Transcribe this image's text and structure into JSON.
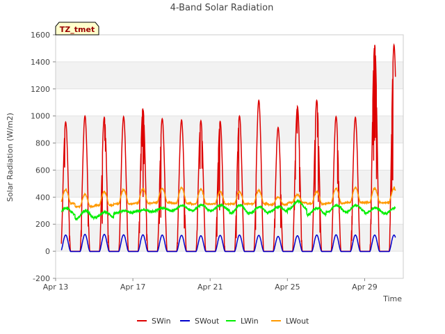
{
  "chart_data": {
    "type": "line",
    "title": "4-Band Solar Radiation",
    "xlabel": "Time",
    "ylabel": "Solar Radiation (W/m2)",
    "site_tag": "TZ_tmet",
    "x_start": "2024-04-13",
    "x_range_days": [
      0,
      18
    ],
    "ylim": [
      -200,
      1600
    ],
    "y_ticks": [
      -200,
      0,
      200,
      400,
      600,
      800,
      1000,
      1200,
      1400,
      1600
    ],
    "x_ticks": [
      {
        "day": 0,
        "label": "Apr 13"
      },
      {
        "day": 4,
        "label": "Apr 17"
      },
      {
        "day": 8,
        "label": "Apr 21"
      },
      {
        "day": 12,
        "label": "Apr 25"
      },
      {
        "day": 16,
        "label": "Apr 29"
      }
    ],
    "grid": "horizontal bands",
    "legend_position": "bottom",
    "series": [
      {
        "name": "SWin",
        "color": "#dd0000",
        "daily_peaks": [
          955,
          1000,
          990,
          995,
          1055,
          980,
          970,
          965,
          960,
          1000,
          1115,
          915,
          1070,
          1115,
          995,
          990,
          1525
        ]
      },
      {
        "name": "SWout",
        "color": "#0000cc",
        "daily_peaks": [
          120,
          125,
          125,
          122,
          122,
          120,
          118,
          115,
          118,
          120,
          118,
          110,
          115,
          120,
          122,
          120,
          120
        ]
      },
      {
        "name": "LWin",
        "color": "#00ee00",
        "daily_max": [
          320,
          300,
          290,
          300,
          305,
          320,
          340,
          340,
          340,
          340,
          330,
          330,
          370,
          320,
          340,
          340,
          320
        ],
        "daily_min": [
          270,
          240,
          250,
          280,
          290,
          295,
          300,
          300,
          300,
          280,
          280,
          290,
          310,
          270,
          290,
          290,
          280
        ]
      },
      {
        "name": "LWout",
        "color": "#ff9900",
        "daily_max": [
          455,
          420,
          440,
          455,
          460,
          465,
          470,
          460,
          440,
          440,
          450,
          400,
          420,
          440,
          465,
          470,
          465
        ],
        "daily_min": [
          355,
          330,
          340,
          350,
          355,
          360,
          355,
          350,
          350,
          350,
          350,
          345,
          360,
          350,
          355,
          360,
          360
        ]
      }
    ]
  }
}
